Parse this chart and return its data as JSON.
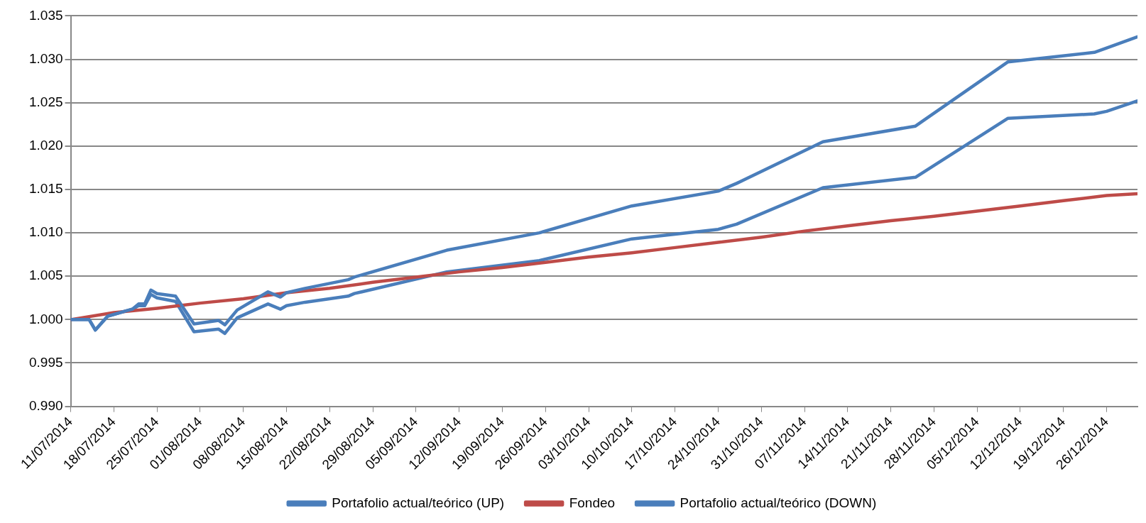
{
  "chart_data": {
    "type": "line",
    "legend": "bottom",
    "grid": "y",
    "marker": "none",
    "line_style": "solid",
    "xlim": [
      "2014-07-11",
      "2014-12-31"
    ],
    "xticks": [
      {
        "value": "2014-07-11",
        "label": "11/07/2014"
      },
      {
        "value": "2014-07-18",
        "label": "18/07/2014"
      },
      {
        "value": "2014-07-25",
        "label": "25/07/2014"
      },
      {
        "value": "2014-08-01",
        "label": "01/08/2014"
      },
      {
        "value": "2014-08-08",
        "label": "08/08/2014"
      },
      {
        "value": "2014-08-15",
        "label": "15/08/2014"
      },
      {
        "value": "2014-08-22",
        "label": "22/08/2014"
      },
      {
        "value": "2014-08-29",
        "label": "29/08/2014"
      },
      {
        "value": "2014-09-05",
        "label": "05/09/2014"
      },
      {
        "value": "2014-09-12",
        "label": "12/09/2014"
      },
      {
        "value": "2014-09-19",
        "label": "19/09/2014"
      },
      {
        "value": "2014-09-26",
        "label": "26/09/2014"
      },
      {
        "value": "2014-10-03",
        "label": "03/10/2014"
      },
      {
        "value": "2014-10-10",
        "label": "10/10/2014"
      },
      {
        "value": "2014-10-17",
        "label": "17/10/2014"
      },
      {
        "value": "2014-10-24",
        "label": "24/10/2014"
      },
      {
        "value": "2014-10-31",
        "label": "31/10/2014"
      },
      {
        "value": "2014-11-07",
        "label": "07/11/2014"
      },
      {
        "value": "2014-11-14",
        "label": "14/11/2014"
      },
      {
        "value": "2014-11-21",
        "label": "21/11/2014"
      },
      {
        "value": "2014-11-28",
        "label": "28/11/2014"
      },
      {
        "value": "2014-12-05",
        "label": "05/12/2014"
      },
      {
        "value": "2014-12-12",
        "label": "12/12/2014"
      },
      {
        "value": "2014-12-19",
        "label": "19/12/2014"
      },
      {
        "value": "2014-12-26",
        "label": "26/12/2014"
      }
    ],
    "ylim": [
      0.99,
      1.035
    ],
    "yticks": [
      {
        "value": 0.99,
        "label": "0.990"
      },
      {
        "value": 0.995,
        "label": "0.995"
      },
      {
        "value": 1,
        "label": "1.000"
      },
      {
        "value": 1.005,
        "label": "1.005"
      },
      {
        "value": 1.01,
        "label": "1.010"
      },
      {
        "value": 1.015,
        "label": "1.015"
      },
      {
        "value": 1.02,
        "label": "1.020"
      },
      {
        "value": 1.025,
        "label": "1.025"
      },
      {
        "value": 1.03,
        "label": "1.030"
      },
      {
        "value": 1.035,
        "label": "1.035"
      }
    ],
    "series": [
      {
        "name": "Portafolio actual/teórico (UP)",
        "color": "#4a7ebb",
        "x": [
          "2014-07-11",
          "2014-07-14",
          "2014-07-15",
          "2014-07-17",
          "2014-07-21",
          "2014-07-22",
          "2014-07-23",
          "2014-07-24",
          "2014-07-25",
          "2014-07-28",
          "2014-07-31",
          "2014-08-04",
          "2014-08-05",
          "2014-08-07",
          "2014-08-12",
          "2014-08-14",
          "2014-08-15",
          "2014-08-18",
          "2014-08-25",
          "2014-08-26",
          "2014-09-10",
          "2014-09-25",
          "2014-10-10",
          "2014-10-24",
          "2014-10-27",
          "2014-11-10",
          "2014-11-25",
          "2014-12-10",
          "2014-12-24",
          "2014-12-26",
          "2014-12-31"
        ],
        "values": [
          1.0,
          1.0,
          0.9988,
          1.0004,
          1.0012,
          1.0018,
          1.0018,
          1.0034,
          1.003,
          1.0027,
          0.9995,
          0.9999,
          0.9994,
          1.0011,
          1.0032,
          1.0026,
          1.0031,
          1.0036,
          1.0046,
          1.0049,
          1.008,
          1.01,
          1.0131,
          1.0148,
          1.0157,
          1.0205,
          1.0223,
          1.0297,
          1.0308,
          1.0313,
          1.0326
        ]
      },
      {
        "name": "Fondeo",
        "color": "#be4b48",
        "x": [
          "2014-07-11",
          "2014-07-18",
          "2014-07-25",
          "2014-08-01",
          "2014-08-08",
          "2014-08-15",
          "2014-08-22",
          "2014-08-29",
          "2014-09-05",
          "2014-09-12",
          "2014-09-19",
          "2014-09-26",
          "2014-10-03",
          "2014-10-10",
          "2014-10-17",
          "2014-10-24",
          "2014-10-31",
          "2014-11-07",
          "2014-11-14",
          "2014-11-21",
          "2014-11-28",
          "2014-12-05",
          "2014-12-12",
          "2014-12-19",
          "2014-12-26",
          "2014-12-31"
        ],
        "values": [
          1.0,
          1.0008,
          1.0013,
          1.0019,
          1.0024,
          1.0031,
          1.0036,
          1.0043,
          1.0049,
          1.0055,
          1.006,
          1.0066,
          1.0072,
          1.0077,
          1.0083,
          1.0089,
          1.0095,
          1.0102,
          1.0108,
          1.0114,
          1.0119,
          1.0125,
          1.0131,
          1.0137,
          1.0143,
          1.0145
        ]
      },
      {
        "name": "Portafolio actual/teórico (DOWN)",
        "color": "#4a7ebb",
        "x": [
          "2014-07-11",
          "2014-07-14",
          "2014-07-15",
          "2014-07-17",
          "2014-07-21",
          "2014-07-22",
          "2014-07-23",
          "2014-07-24",
          "2014-07-25",
          "2014-07-28",
          "2014-07-31",
          "2014-08-04",
          "2014-08-05",
          "2014-08-07",
          "2014-08-12",
          "2014-08-14",
          "2014-08-15",
          "2014-08-18",
          "2014-08-25",
          "2014-08-26",
          "2014-09-10",
          "2014-09-25",
          "2014-10-10",
          "2014-10-24",
          "2014-10-27",
          "2014-11-10",
          "2014-11-25",
          "2014-12-10",
          "2014-12-24",
          "2014-12-26",
          "2014-12-31"
        ],
        "values": [
          1.0,
          1.0,
          0.9988,
          1.0004,
          1.0012,
          1.0016,
          1.0016,
          1.0029,
          1.0025,
          1.0021,
          0.9986,
          0.9989,
          0.9984,
          1.0002,
          1.0018,
          1.0012,
          1.0016,
          1.002,
          1.0027,
          1.003,
          1.0055,
          1.0068,
          1.0093,
          1.0104,
          1.011,
          1.0152,
          1.0164,
          1.0232,
          1.0237,
          1.024,
          1.0252
        ]
      }
    ]
  }
}
